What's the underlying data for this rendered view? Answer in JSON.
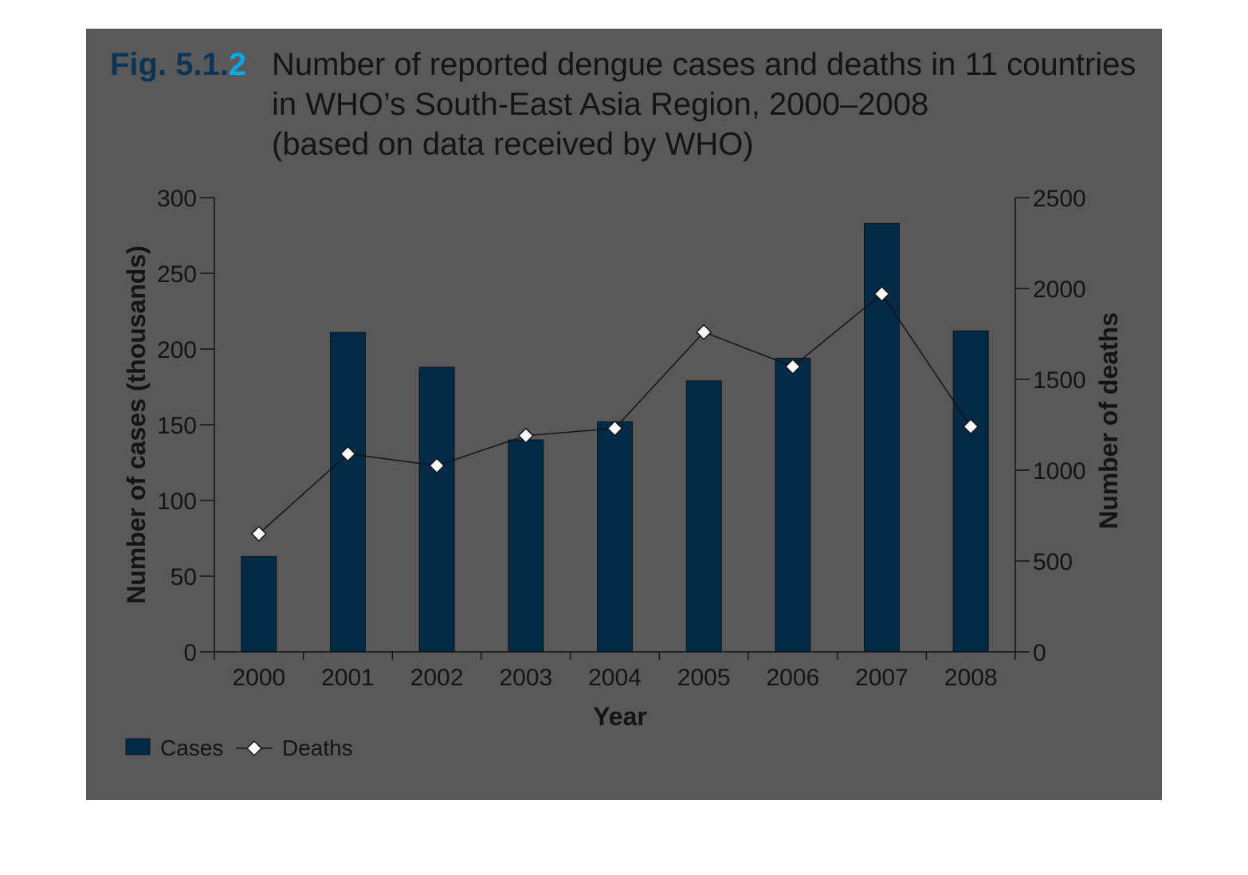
{
  "figure": {
    "number_prefix": "Fig. 5.1.",
    "number_suffix": "2",
    "title_lines": [
      "Number of reported dengue cases and deaths in 11 countries",
      "in WHO’s South-East Asia Region, 2000–2008",
      "(based on data received by WHO)"
    ]
  },
  "colors": {
    "panel": "#595959",
    "bar": "#002a46",
    "fig_number": "#0b3556",
    "fig_number_accent": "#00a9e8",
    "line": "#141414",
    "marker_fill": "#ffffff"
  },
  "chart_data": {
    "type": "bar",
    "categories": [
      "2000",
      "2001",
      "2002",
      "2003",
      "2004",
      "2005",
      "2006",
      "2007",
      "2008"
    ],
    "series": [
      {
        "name": "Cases",
        "type": "bar",
        "axis": "left",
        "values": [
          63,
          211,
          188,
          140,
          152,
          179,
          194,
          283,
          212
        ]
      },
      {
        "name": "Deaths",
        "type": "line",
        "axis": "right",
        "values": [
          650,
          1090,
          1025,
          1190,
          1230,
          1760,
          1570,
          1970,
          1240
        ]
      }
    ],
    "xlabel": "Year",
    "ylabel": "Number of cases (thousands)",
    "y2label": "Number of deaths",
    "ylim": [
      0,
      300
    ],
    "y2lim": [
      0,
      2500
    ],
    "yticks": [
      0,
      50,
      100,
      150,
      200,
      250,
      300
    ],
    "y2ticks": [
      0,
      500,
      1000,
      1500,
      2000,
      2500
    ],
    "grid": false,
    "legend": {
      "placement": "bottom-left",
      "entries": [
        "Cases",
        "Deaths"
      ]
    }
  }
}
